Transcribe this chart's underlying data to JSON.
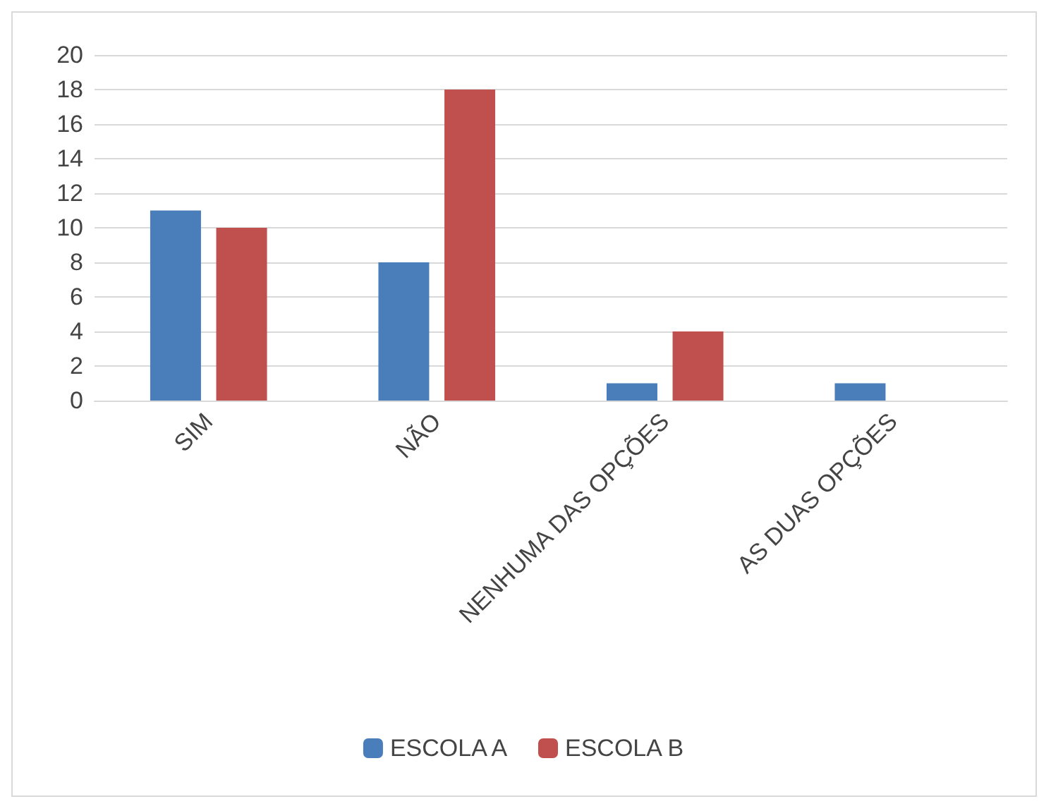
{
  "chart_data": {
    "type": "bar",
    "categories": [
      "SIM",
      "NÃO",
      "NENHUMA DAS OPÇÕES",
      "AS DUAS OPÇÕES"
    ],
    "series": [
      {
        "name": "ESCOLA A",
        "color": "#4a7ebb",
        "values": [
          11,
          8,
          1,
          1
        ]
      },
      {
        "name": "ESCOLA B",
        "color": "#c0504d",
        "values": [
          10,
          18,
          4,
          0
        ]
      }
    ],
    "ylim": [
      0,
      20
    ],
    "yticks": [
      0,
      2,
      4,
      6,
      8,
      10,
      12,
      14,
      16,
      18,
      20
    ],
    "grid": "y",
    "legend": "bottom"
  }
}
